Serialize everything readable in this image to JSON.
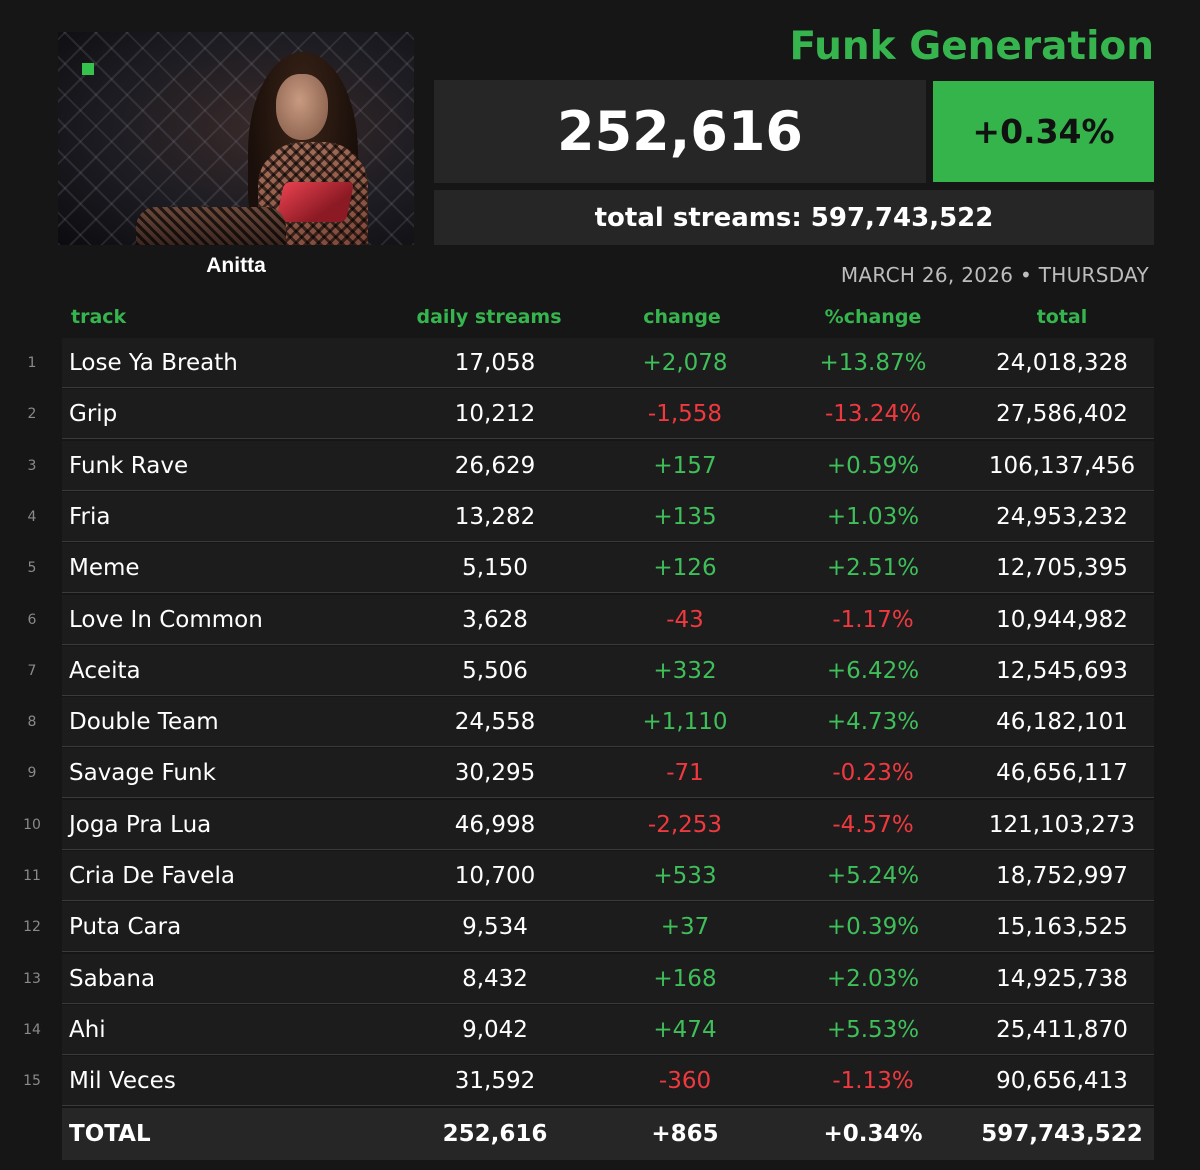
{
  "album": {
    "title": "Funk Generation",
    "artist": "Anitta",
    "daily_streams": "252,616",
    "daily_change_pct": "+0.34%",
    "total_streams_label": "total streams: 597,743,522",
    "date": "MARCH 26, 2026 • THURSDAY"
  },
  "colors": {
    "accent_green": "#36b54e",
    "positive": "#3fbf5a",
    "negative": "#f0393e",
    "background": "#161616"
  },
  "table": {
    "headers": {
      "track": "track",
      "daily": "daily streams",
      "change": "change",
      "pct": "%change",
      "total": "total"
    },
    "rows": [
      {
        "rank": "1",
        "track": "Lose Ya Breath",
        "daily": "17,058",
        "change": "+2,078",
        "pct": "+13.87%",
        "total": "24,018,328",
        "dir": "pos"
      },
      {
        "rank": "2",
        "track": "Grip",
        "daily": "10,212",
        "change": "-1,558",
        "pct": "-13.24%",
        "total": "27,586,402",
        "dir": "neg"
      },
      {
        "rank": "3",
        "track": "Funk Rave",
        "daily": "26,629",
        "change": "+157",
        "pct": "+0.59%",
        "total": "106,137,456",
        "dir": "pos"
      },
      {
        "rank": "4",
        "track": "Fria",
        "daily": "13,282",
        "change": "+135",
        "pct": "+1.03%",
        "total": "24,953,232",
        "dir": "pos"
      },
      {
        "rank": "5",
        "track": "Meme",
        "daily": "5,150",
        "change": "+126",
        "pct": "+2.51%",
        "total": "12,705,395",
        "dir": "pos"
      },
      {
        "rank": "6",
        "track": "Love In Common",
        "daily": "3,628",
        "change": "-43",
        "pct": "-1.17%",
        "total": "10,944,982",
        "dir": "neg"
      },
      {
        "rank": "7",
        "track": "Aceita",
        "daily": "5,506",
        "change": "+332",
        "pct": "+6.42%",
        "total": "12,545,693",
        "dir": "pos"
      },
      {
        "rank": "8",
        "track": "Double Team",
        "daily": "24,558",
        "change": "+1,110",
        "pct": "+4.73%",
        "total": "46,182,101",
        "dir": "pos"
      },
      {
        "rank": "9",
        "track": "Savage Funk",
        "daily": "30,295",
        "change": "-71",
        "pct": "-0.23%",
        "total": "46,656,117",
        "dir": "neg"
      },
      {
        "rank": "10",
        "track": "Joga Pra Lua",
        "daily": "46,998",
        "change": "-2,253",
        "pct": "-4.57%",
        "total": "121,103,273",
        "dir": "neg"
      },
      {
        "rank": "11",
        "track": "Cria De Favela",
        "daily": "10,700",
        "change": "+533",
        "pct": "+5.24%",
        "total": "18,752,997",
        "dir": "pos"
      },
      {
        "rank": "12",
        "track": "Puta Cara",
        "daily": "9,534",
        "change": "+37",
        "pct": "+0.39%",
        "total": "15,163,525",
        "dir": "pos"
      },
      {
        "rank": "13",
        "track": "Sabana",
        "daily": "8,432",
        "change": "+168",
        "pct": "+2.03%",
        "total": "14,925,738",
        "dir": "pos"
      },
      {
        "rank": "14",
        "track": "Ahi",
        "daily": "9,042",
        "change": "+474",
        "pct": "+5.53%",
        "total": "25,411,870",
        "dir": "pos"
      },
      {
        "rank": "15",
        "track": "Mil Veces",
        "daily": "31,592",
        "change": "-360",
        "pct": "-1.13%",
        "total": "90,656,413",
        "dir": "neg"
      }
    ],
    "total_row": {
      "label": "TOTAL",
      "daily": "252,616",
      "change": "+865",
      "pct": "+0.34%",
      "total": "597,743,522"
    }
  }
}
